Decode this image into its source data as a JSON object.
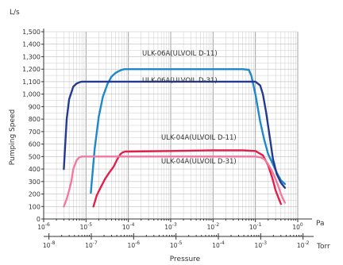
{
  "chart_data": {
    "type": "line",
    "title": "",
    "ylabel": "Pumping Speed",
    "yunit": "L/s",
    "xlabel": "Pressure",
    "xscale": "log",
    "xlim_pa": [
      1e-06,
      1
    ],
    "ylim": [
      0,
      1500
    ],
    "y_ticks": [
      0,
      100,
      200,
      300,
      400,
      500,
      600,
      700,
      800,
      900,
      1000,
      1100,
      1200,
      1300,
      1400,
      1500
    ],
    "y_tick_labels": [
      "0",
      "100",
      "200",
      "300",
      "400",
      "500",
      "600",
      "700",
      "800",
      "900",
      "1,000",
      "1,100",
      "1,200",
      "1,300",
      "1,400",
      "1,500"
    ],
    "grid": true,
    "pa_axis": {
      "unit": "Pa",
      "ticks": [
        {
          "value": 1e-06,
          "base": "10",
          "exp": "-6"
        },
        {
          "value": 1e-05,
          "base": "10",
          "exp": "-5"
        },
        {
          "value": 0.0001,
          "base": "10",
          "exp": "-4"
        },
        {
          "value": 0.001,
          "base": "10",
          "exp": "-3"
        },
        {
          "value": 0.01,
          "base": "10",
          "exp": "-2"
        },
        {
          "value": 0.1,
          "base": "10",
          "exp": "-1"
        },
        {
          "value": 1,
          "base": "10",
          "exp": "0"
        }
      ]
    },
    "torr_axis": {
      "unit": "Torr",
      "ticks": [
        {
          "value": 1e-08,
          "base": "10",
          "exp": "-8"
        },
        {
          "value": 1e-07,
          "base": "10",
          "exp": "-7"
        },
        {
          "value": 1e-06,
          "base": "10",
          "exp": "-6"
        },
        {
          "value": 1e-05,
          "base": "10",
          "exp": "-5"
        },
        {
          "value": 0.0001,
          "base": "10",
          "exp": "-4"
        },
        {
          "value": 0.001,
          "base": "10",
          "exp": "-3"
        },
        {
          "value": 0.01,
          "base": "10",
          "exp": "-2"
        }
      ]
    },
    "series": [
      {
        "name": "ULK-06A(ULVOIL D-11)",
        "color": "#1e88c8",
        "x": [
          1.3e-05,
          1.6e-05,
          2e-05,
          2.5e-05,
          3.2e-05,
          4e-05,
          5e-05,
          6e-05,
          7e-05,
          8e-05,
          0.0001,
          0.0002,
          0.001,
          0.01,
          0.05,
          0.07,
          0.08,
          0.1,
          0.13,
          0.16,
          0.2,
          0.25,
          0.32,
          0.4,
          0.5
        ],
        "y": [
          210,
          560,
          820,
          980,
          1080,
          1140,
          1170,
          1185,
          1195,
          1200,
          1200,
          1200,
          1200,
          1200,
          1200,
          1195,
          1150,
          1000,
          780,
          640,
          520,
          450,
          370,
          310,
          280
        ]
      },
      {
        "name": "ULK-06A(ULVOIL D-31)",
        "color": "#233a8f",
        "x": [
          3e-06,
          3.5e-06,
          4e-06,
          5e-06,
          6e-06,
          7e-06,
          8e-06,
          9e-06,
          1e-05,
          0.0001,
          0.001,
          0.01,
          0.1,
          0.13,
          0.15,
          0.18,
          0.22,
          0.26,
          0.32,
          0.4,
          0.5
        ],
        "y": [
          400,
          800,
          960,
          1060,
          1085,
          1095,
          1100,
          1100,
          1100,
          1100,
          1100,
          1100,
          1100,
          1070,
          1000,
          850,
          650,
          480,
          360,
          290,
          250
        ]
      },
      {
        "name": "ULK-04A(ULVOIL D-11)",
        "color": "#e0204a",
        "x": [
          1.5e-05,
          1.8e-05,
          2.2e-05,
          2.8e-05,
          3.5e-05,
          4.5e-05,
          5.5e-05,
          6.5e-05,
          7.5e-05,
          8.5e-05,
          0.0001,
          0.001,
          0.01,
          0.05,
          0.1,
          0.15,
          0.2,
          0.25,
          0.3,
          0.35,
          0.4
        ],
        "y": [
          100,
          190,
          250,
          320,
          370,
          420,
          480,
          520,
          535,
          540,
          540,
          545,
          550,
          550,
          545,
          510,
          430,
          330,
          230,
          170,
          120
        ]
      },
      {
        "name": "ULK-04A(ULVOIL D-31)",
        "color": "#f07aa0",
        "x": [
          3e-06,
          3.5e-06,
          4e-06,
          4.5e-06,
          5e-06,
          6e-06,
          7e-06,
          8e-06,
          1e-05,
          0.0001,
          0.001,
          0.01,
          0.1,
          0.13,
          0.16,
          0.2,
          0.25,
          0.3,
          0.35,
          0.4,
          0.45,
          0.5
        ],
        "y": [
          100,
          160,
          230,
          300,
          400,
          470,
          495,
          500,
          500,
          500,
          500,
          500,
          500,
          495,
          480,
          440,
          380,
          320,
          260,
          200,
          160,
          130
        ]
      }
    ]
  }
}
